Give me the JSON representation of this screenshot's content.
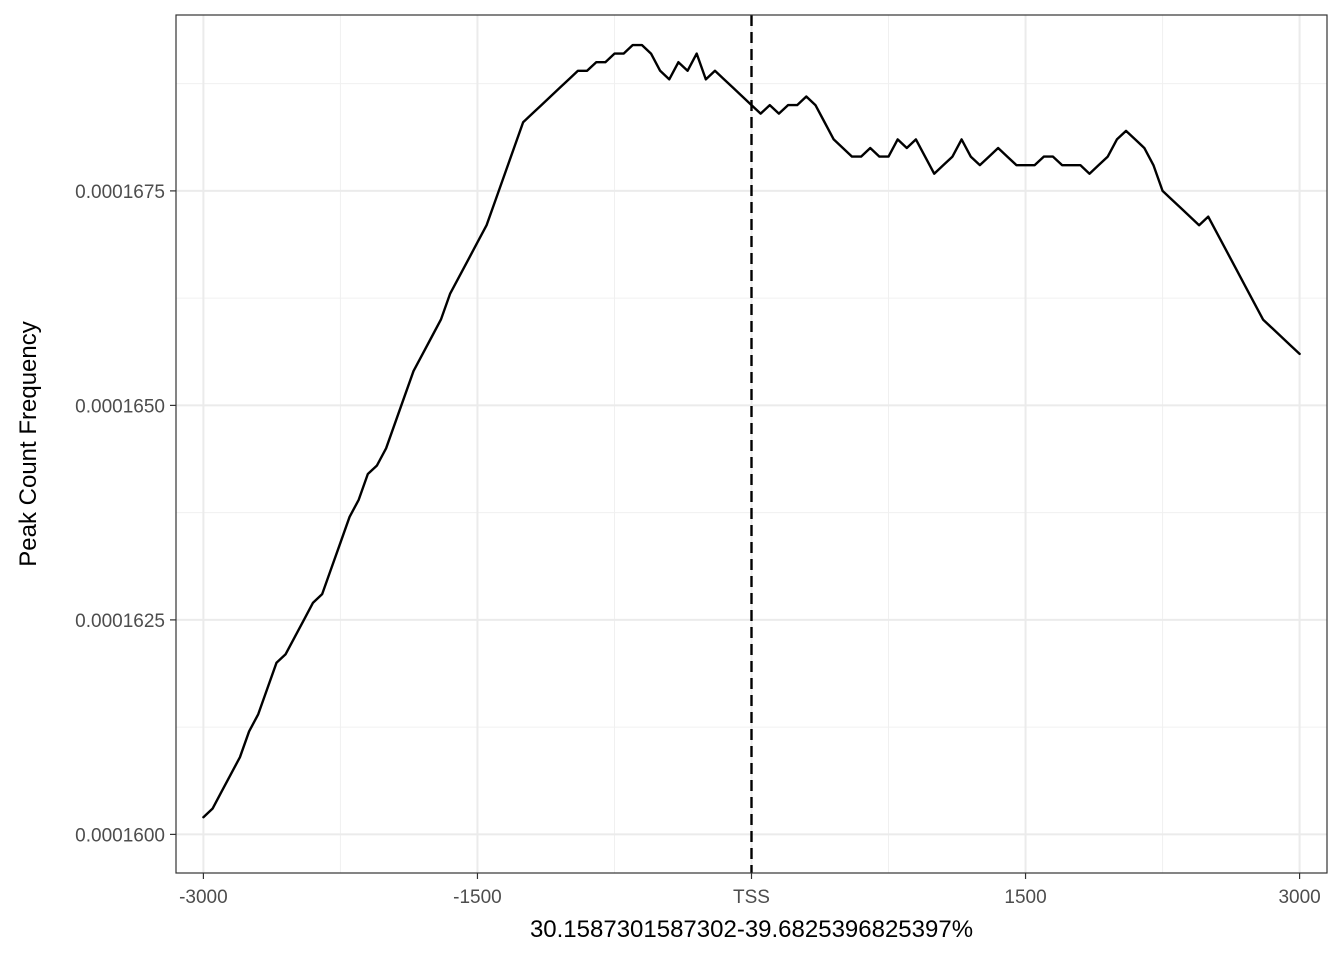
{
  "chart_data": {
    "type": "line",
    "title": "",
    "xlabel": "30.1587301587302-39.6825396825397%",
    "ylabel": "Peak Count Frequency",
    "xlim": [
      -3150,
      3150
    ],
    "ylim": [
      0.00015955,
      0.00016955
    ],
    "x_ticks": [
      {
        "value": -3000,
        "label": "-3000"
      },
      {
        "value": -1500,
        "label": "-1500"
      },
      {
        "value": 0,
        "label": "TSS"
      },
      {
        "value": 1500,
        "label": "1500"
      },
      {
        "value": 3000,
        "label": "3000"
      }
    ],
    "y_ticks": [
      {
        "value": 0.00016,
        "label": "0.0001600"
      },
      {
        "value": 0.0001625,
        "label": "0.0001625"
      },
      {
        "value": 0.000165,
        "label": "0.0001650"
      },
      {
        "value": 0.0001675,
        "label": "0.0001675"
      }
    ],
    "vline": {
      "x": 0,
      "style": "dashed"
    },
    "grid": true,
    "series": [
      {
        "color": "#000000",
        "x": [
          -3000,
          -2950,
          -2900,
          -2850,
          -2800,
          -2750,
          -2700,
          -2650,
          -2600,
          -2550,
          -2500,
          -2450,
          -2400,
          -2350,
          -2300,
          -2250,
          -2200,
          -2150,
          -2100,
          -2050,
          -2000,
          -1950,
          -1900,
          -1850,
          -1800,
          -1750,
          -1700,
          -1650,
          -1600,
          -1550,
          -1500,
          -1450,
          -1400,
          -1350,
          -1300,
          -1250,
          -1200,
          -1150,
          -1100,
          -1050,
          -1000,
          -950,
          -900,
          -850,
          -800,
          -750,
          -700,
          -650,
          -600,
          -550,
          -500,
          -450,
          -400,
          -350,
          -300,
          -250,
          -200,
          -150,
          -100,
          -50,
          0,
          50,
          100,
          150,
          200,
          250,
          300,
          350,
          400,
          450,
          500,
          550,
          600,
          650,
          700,
          750,
          800,
          850,
          900,
          950,
          1000,
          1050,
          1100,
          1150,
          1200,
          1250,
          1300,
          1350,
          1400,
          1450,
          1500,
          1550,
          1600,
          1650,
          1700,
          1750,
          1800,
          1850,
          1900,
          1950,
          2000,
          2050,
          2100,
          2150,
          2200,
          2250,
          2300,
          2350,
          2400,
          2450,
          2500,
          2550,
          2600,
          2650,
          2700,
          2750,
          2800,
          2850,
          2900,
          2950,
          3000
        ],
        "y": [
          0.0001602,
          0.0001603,
          0.0001605,
          0.0001607,
          0.0001609,
          0.0001612,
          0.0001614,
          0.0001617,
          0.000162,
          0.0001621,
          0.0001623,
          0.0001625,
          0.0001627,
          0.0001628,
          0.0001631,
          0.0001634,
          0.0001637,
          0.0001639,
          0.0001642,
          0.0001643,
          0.0001645,
          0.0001648,
          0.0001651,
          0.0001654,
          0.0001656,
          0.0001658,
          0.000166,
          0.0001663,
          0.0001665,
          0.0001667,
          0.0001669,
          0.0001671,
          0.0001674,
          0.0001677,
          0.000168,
          0.0001683,
          0.0001684,
          0.0001685,
          0.0001686,
          0.0001687,
          0.0001688,
          0.0001689,
          0.0001689,
          0.000169,
          0.000169,
          0.0001691,
          0.0001691,
          0.0001692,
          0.0001692,
          0.0001691,
          0.0001689,
          0.0001688,
          0.000169,
          0.0001689,
          0.0001691,
          0.0001688,
          0.0001689,
          0.0001688,
          0.0001687,
          0.0001686,
          0.0001685,
          0.0001684,
          0.0001685,
          0.0001684,
          0.0001685,
          0.0001685,
          0.0001686,
          0.0001685,
          0.0001683,
          0.0001681,
          0.000168,
          0.0001679,
          0.0001679,
          0.000168,
          0.0001679,
          0.0001679,
          0.0001681,
          0.000168,
          0.0001681,
          0.0001679,
          0.0001677,
          0.0001678,
          0.0001679,
          0.0001681,
          0.0001679,
          0.0001678,
          0.0001679,
          0.000168,
          0.0001679,
          0.0001678,
          0.0001678,
          0.0001678,
          0.0001679,
          0.0001679,
          0.0001678,
          0.0001678,
          0.0001678,
          0.0001677,
          0.0001678,
          0.0001679,
          0.0001681,
          0.0001682,
          0.0001681,
          0.000168,
          0.0001678,
          0.0001675,
          0.0001674,
          0.0001673,
          0.0001672,
          0.0001671,
          0.0001672,
          0.000167,
          0.0001668,
          0.0001666,
          0.0001664,
          0.0001662,
          0.000166,
          0.0001659,
          0.0001658,
          0.0001657,
          0.0001656
        ]
      }
    ]
  }
}
